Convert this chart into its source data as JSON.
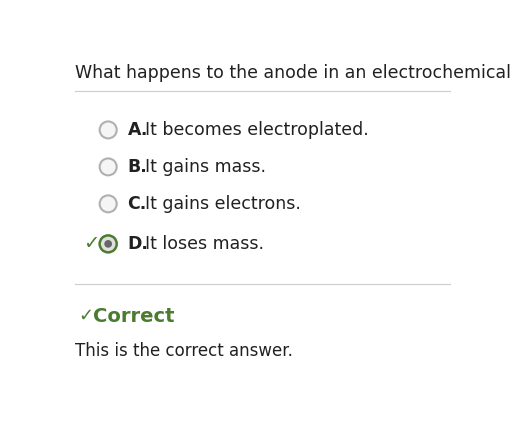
{
  "title": "What happens to the anode in an electrochemical cell?",
  "options": [
    {
      "label": "A.",
      "text": "It becomes electroplated.",
      "selected": false,
      "correct": false
    },
    {
      "label": "B.",
      "text": "It gains mass.",
      "selected": false,
      "correct": false
    },
    {
      "label": "C.",
      "text": "It gains electrons.",
      "selected": false,
      "correct": false
    },
    {
      "label": "D.",
      "text": "It loses mass.",
      "selected": true,
      "correct": true
    }
  ],
  "correct_label": "Correct",
  "correct_note": "This is the correct answer.",
  "bg_color": "#ffffff",
  "text_color": "#212121",
  "green_color": "#4a7c2f",
  "circle_edge_color": "#b0b0b0",
  "circle_fill_color": "#f5f5f5",
  "separator_color": "#d0d0d0",
  "title_fontsize": 12.5,
  "option_fontsize": 12.5,
  "label_fontsize": 12.5,
  "note_fontsize": 12,
  "correct_fontsize": 14
}
